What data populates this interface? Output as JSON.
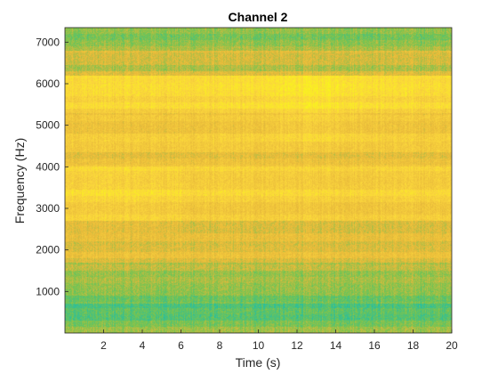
{
  "chart_data": {
    "type": "heatmap",
    "title": "Channel 2",
    "xlabel": "Time (s)",
    "ylabel": "Frequency (Hz)",
    "xlim": [
      0,
      20
    ],
    "ylim": [
      0,
      7350
    ],
    "xticks": [
      2,
      4,
      6,
      8,
      10,
      12,
      14,
      16,
      18,
      20
    ],
    "yticks": [
      1000,
      2000,
      3000,
      4000,
      5000,
      6000,
      7000
    ],
    "colormap": "parula",
    "colormap_stops": [
      "#3e26a8",
      "#1389d2",
      "#18bdb0",
      "#76c450",
      "#e8b93a",
      "#fbd63d",
      "#f9fb15"
    ],
    "grid": false,
    "frequency_band_levels": [
      {
        "freq_from": 0,
        "freq_to": 300,
        "level": 0.55
      },
      {
        "freq_from": 300,
        "freq_to": 700,
        "level": 0.42
      },
      {
        "freq_from": 700,
        "freq_to": 1200,
        "level": 0.5
      },
      {
        "freq_from": 1200,
        "freq_to": 1700,
        "level": 0.58
      },
      {
        "freq_from": 1700,
        "freq_to": 2200,
        "level": 0.66
      },
      {
        "freq_from": 2200,
        "freq_to": 2700,
        "level": 0.72
      },
      {
        "freq_from": 2700,
        "freq_to": 3300,
        "level": 0.78
      },
      {
        "freq_from": 3300,
        "freq_to": 4000,
        "level": 0.82
      },
      {
        "freq_from": 4000,
        "freq_to": 4600,
        "level": 0.72
      },
      {
        "freq_from": 4600,
        "freq_to": 5300,
        "level": 0.75
      },
      {
        "freq_from": 5300,
        "freq_to": 6200,
        "level": 0.82
      },
      {
        "freq_from": 6200,
        "freq_to": 6800,
        "level": 0.62
      },
      {
        "freq_from": 6800,
        "freq_to": 7350,
        "level": 0.52
      }
    ]
  }
}
